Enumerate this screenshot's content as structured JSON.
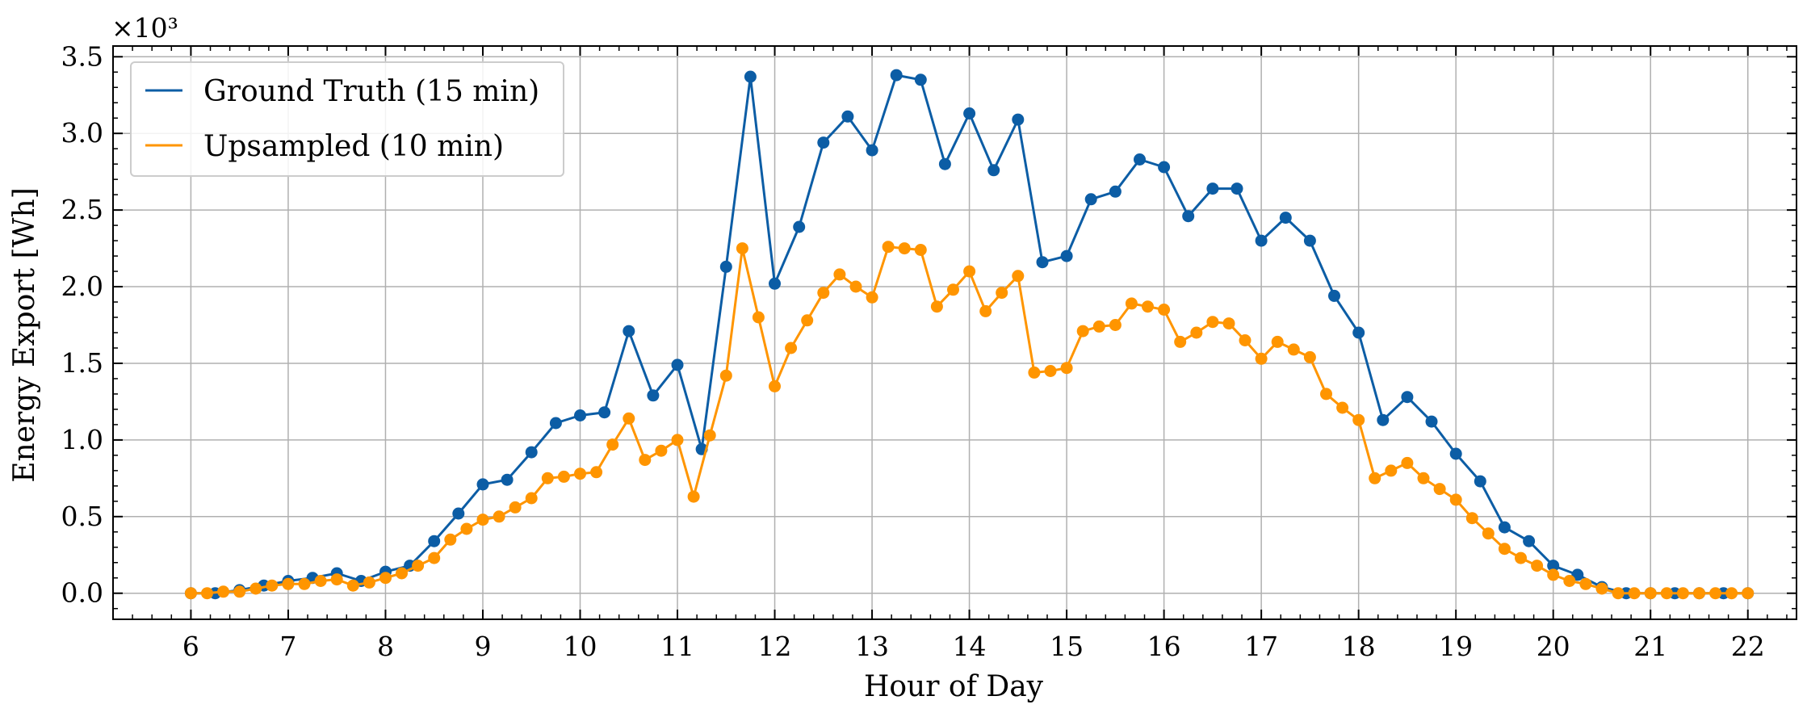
{
  "chart_data": {
    "type": "line",
    "xlabel": "Hour of Day",
    "ylabel": "Energy Export [Wh]",
    "y_scale_label": "×10³",
    "x_ticks": [
      6,
      7,
      8,
      9,
      10,
      11,
      12,
      13,
      14,
      15,
      16,
      17,
      18,
      19,
      20,
      21,
      22
    ],
    "y_ticks": [
      0.0,
      0.5,
      1.0,
      1.5,
      2.0,
      2.5,
      3.0,
      3.5
    ],
    "y_tick_labels": [
      "0.0",
      "0.5",
      "1.0",
      "1.5",
      "2.0",
      "2.5",
      "3.0",
      "3.5"
    ],
    "xlim": [
      5.2,
      22.5
    ],
    "ylim": [
      -0.17,
      3.57
    ],
    "grid": true,
    "legend_position": "top-left",
    "series": [
      {
        "name": "Ground Truth (15 min)",
        "color": "#0c5da5",
        "x": [
          6.0,
          6.25,
          6.5,
          6.75,
          7.0,
          7.25,
          7.5,
          7.75,
          8.0,
          8.25,
          8.5,
          8.75,
          9.0,
          9.25,
          9.5,
          9.75,
          10.0,
          10.25,
          10.5,
          10.75,
          11.0,
          11.25,
          11.5,
          11.75,
          12.0,
          12.25,
          12.5,
          12.75,
          13.0,
          13.25,
          13.5,
          13.75,
          14.0,
          14.25,
          14.5,
          14.75,
          15.0,
          15.25,
          15.5,
          15.75,
          16.0,
          16.25,
          16.5,
          16.75,
          17.0,
          17.25,
          17.5,
          17.75,
          18.0,
          18.25,
          18.5,
          18.75,
          19.0,
          19.25,
          19.5,
          19.75,
          20.0,
          20.25,
          20.5,
          20.75,
          21.0,
          21.25,
          21.5,
          21.75,
          22.0
        ],
        "y": [
          0.0,
          0.0,
          0.02,
          0.05,
          0.08,
          0.1,
          0.13,
          0.08,
          0.14,
          0.18,
          0.34,
          0.52,
          0.71,
          0.74,
          0.92,
          1.11,
          1.16,
          1.18,
          1.71,
          1.29,
          1.49,
          0.94,
          2.13,
          3.37,
          2.02,
          2.39,
          2.94,
          3.11,
          2.89,
          3.38,
          3.35,
          2.8,
          3.13,
          2.76,
          3.09,
          2.16,
          2.2,
          2.57,
          2.62,
          2.83,
          2.78,
          2.46,
          2.64,
          2.64,
          2.3,
          2.45,
          2.3,
          1.94,
          1.7,
          1.13,
          1.28,
          1.12,
          0.91,
          0.73,
          0.43,
          0.34,
          0.18,
          0.12,
          0.04,
          0.0,
          0.0,
          0.0,
          0.0,
          0.0,
          0.0
        ]
      },
      {
        "name": "Upsampled (10 min)",
        "color": "#ff9500",
        "x": [
          6.0,
          6.1667,
          6.3333,
          6.5,
          6.6667,
          6.8333,
          7.0,
          7.1667,
          7.3333,
          7.5,
          7.6667,
          7.8333,
          8.0,
          8.1667,
          8.3333,
          8.5,
          8.6667,
          8.8333,
          9.0,
          9.1667,
          9.3333,
          9.5,
          9.6667,
          9.8333,
          10.0,
          10.1667,
          10.3333,
          10.5,
          10.6667,
          10.8333,
          11.0,
          11.1667,
          11.3333,
          11.5,
          11.6667,
          11.8333,
          12.0,
          12.1667,
          12.3333,
          12.5,
          12.6667,
          12.8333,
          13.0,
          13.1667,
          13.3333,
          13.5,
          13.6667,
          13.8333,
          14.0,
          14.1667,
          14.3333,
          14.5,
          14.6667,
          14.8333,
          15.0,
          15.1667,
          15.3333,
          15.5,
          15.6667,
          15.8333,
          16.0,
          16.1667,
          16.3333,
          16.5,
          16.6667,
          16.8333,
          17.0,
          17.1667,
          17.3333,
          17.5,
          17.6667,
          17.8333,
          18.0,
          18.1667,
          18.3333,
          18.5,
          18.6667,
          18.8333,
          19.0,
          19.1667,
          19.3333,
          19.5,
          19.6667,
          19.8333,
          20.0,
          20.1667,
          20.3333,
          20.5,
          20.6667,
          20.8333,
          21.0,
          21.1667,
          21.3333,
          21.5,
          21.6667,
          21.8333,
          22.0
        ],
        "y": [
          0.0,
          0.0,
          0.01,
          0.01,
          0.03,
          0.05,
          0.06,
          0.06,
          0.08,
          0.09,
          0.05,
          0.07,
          0.1,
          0.13,
          0.18,
          0.23,
          0.35,
          0.42,
          0.48,
          0.5,
          0.56,
          0.62,
          0.75,
          0.76,
          0.78,
          0.79,
          0.97,
          1.14,
          0.87,
          0.93,
          1.0,
          0.63,
          1.03,
          1.42,
          2.25,
          1.8,
          1.35,
          1.6,
          1.78,
          1.96,
          2.08,
          2.0,
          1.93,
          2.26,
          2.25,
          2.24,
          1.87,
          1.98,
          2.1,
          1.84,
          1.96,
          2.07,
          1.44,
          1.45,
          1.47,
          1.71,
          1.74,
          1.75,
          1.89,
          1.87,
          1.85,
          1.64,
          1.7,
          1.77,
          1.76,
          1.65,
          1.53,
          1.64,
          1.59,
          1.54,
          1.3,
          1.21,
          1.13,
          0.75,
          0.8,
          0.85,
          0.75,
          0.68,
          0.61,
          0.49,
          0.39,
          0.29,
          0.23,
          0.18,
          0.12,
          0.08,
          0.06,
          0.03,
          0.0,
          0.0,
          0.0,
          0.0,
          0.0,
          0.0,
          0.0,
          0.0,
          0.0
        ]
      }
    ]
  }
}
